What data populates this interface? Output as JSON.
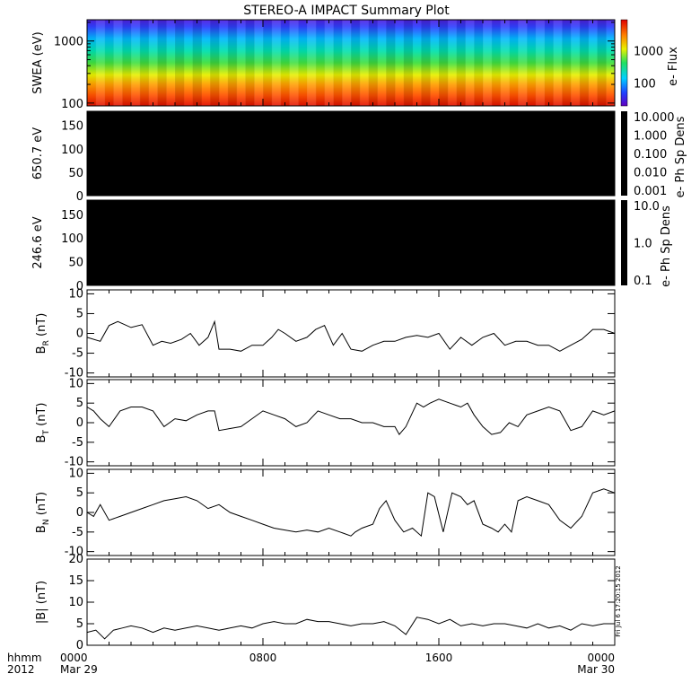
{
  "page": {
    "title": "STEREO-A IMPACT Summary Plot",
    "side_stamp": "Fri Jul  6 17:20:15 2012",
    "time_axis": {
      "corner_label_1": "hhmm",
      "corner_label_2": "2012",
      "ticks": [
        {
          "h": 0,
          "label": "0000",
          "sublabel": "Mar 29"
        },
        {
          "h": 8,
          "label": "0800",
          "sublabel": ""
        },
        {
          "h": 16,
          "label": "1600",
          "sublabel": ""
        },
        {
          "h": 24,
          "label": "0000",
          "sublabel": "Mar 30"
        }
      ]
    }
  },
  "chart_data": [
    {
      "type": "heatmap",
      "panel": "swea",
      "ylabel": "SWEA (eV)",
      "yscale": "log",
      "ylim": [
        90,
        2200
      ],
      "yticks": [
        100,
        1000
      ],
      "ytick_labels": [
        "100",
        "1000"
      ],
      "xlim": [
        0,
        24
      ],
      "colorbar": {
        "label": "e- Flux",
        "scale": "log",
        "range": [
          20,
          9000
        ],
        "ticks": [
          100,
          1000
        ],
        "tick_labels": [
          "100",
          "1000"
        ],
        "colors": [
          "#2030ff",
          "#00d0ff",
          "#10e060",
          "#f0f000",
          "#ff9000",
          "#ff3000",
          "#d00000"
        ]
      },
      "description_values": {
        "energy_bands_eV": [
          100,
          150,
          250,
          500,
          900,
          1300,
          1700,
          2000
        ],
        "flux_by_band": [
          7000,
          3500,
          1200,
          300,
          80,
          35,
          25,
          20
        ]
      }
    },
    {
      "type": "heatmap",
      "panel": "pad-650",
      "ylabel": "650.7 eV",
      "ylim": [
        0,
        180
      ],
      "yticks": [
        0,
        50,
        100,
        150
      ],
      "ytick_labels": [
        "0",
        "50",
        "100",
        "150"
      ],
      "xlim": [
        0,
        24
      ],
      "fill_color": "#000000",
      "colorbar": {
        "label": "e- Ph Sp Dens",
        "scale": "log",
        "tick_labels": [
          "10.000",
          "1.000",
          "0.100",
          "0.010",
          "0.001"
        ],
        "fill_color": "#000000"
      }
    },
    {
      "type": "heatmap",
      "panel": "pad-246",
      "ylabel": "246.6 eV",
      "ylim": [
        0,
        180
      ],
      "yticks": [
        0,
        50,
        100,
        150
      ],
      "ytick_labels": [
        "0",
        "50",
        "100",
        "150"
      ],
      "xlim": [
        0,
        24
      ],
      "fill_color": "#000000",
      "colorbar": {
        "label": "e- Ph Sp Dens",
        "scale": "log",
        "tick_labels": [
          "10.0",
          "1.0",
          "0.1"
        ],
        "fill_color": "#000000"
      }
    },
    {
      "type": "line",
      "panel": "br",
      "ylabel": "BR (nT)",
      "ylabel_main": "B",
      "ylabel_sub": "R",
      "ylabel_unit": " (nT)",
      "ylim": [
        -11,
        11
      ],
      "yticks": [
        -10,
        -5,
        0,
        5,
        10
      ],
      "ytick_labels": [
        "-10",
        "-5",
        "0",
        "5",
        "10"
      ],
      "xlim": [
        0,
        24
      ],
      "x": [
        0,
        0.6,
        1,
        1.4,
        2,
        2.5,
        3,
        3.4,
        3.8,
        4.3,
        4.7,
        5.1,
        5.5,
        5.8,
        6,
        6.5,
        7,
        7.5,
        8,
        8.4,
        8.7,
        9,
        9.5,
        10,
        10.4,
        10.8,
        11.2,
        11.6,
        12,
        12.5,
        13,
        13.5,
        14,
        14.5,
        15,
        15.5,
        16,
        16.5,
        17,
        17.5,
        18,
        18.5,
        19,
        19.5,
        20,
        20.5,
        21,
        21.5,
        22,
        22.5,
        23,
        23.5,
        24
      ],
      "y": [
        -1,
        -2,
        2,
        3,
        1.5,
        2.2,
        -3,
        -2,
        -2.5,
        -1.5,
        0,
        -3,
        -1,
        3,
        -4,
        -4,
        -4.5,
        -3,
        -3,
        -1,
        1,
        0,
        -2,
        -1,
        1,
        2,
        -3,
        0,
        -4,
        -4.5,
        -3,
        -2,
        -2,
        -1,
        -0.5,
        -1,
        0,
        -4,
        -1,
        -3,
        -1,
        0,
        -3,
        -2,
        -2,
        -3,
        -3,
        -4.5,
        -3,
        -1.5,
        1,
        1,
        0
      ]
    },
    {
      "type": "line",
      "panel": "bt",
      "ylabel": "BT (nT)",
      "ylabel_main": "B",
      "ylabel_sub": "T",
      "ylabel_unit": " (nT)",
      "ylim": [
        -11,
        11
      ],
      "yticks": [
        -10,
        -5,
        0,
        5,
        10
      ],
      "ytick_labels": [
        "-10",
        "-5",
        "0",
        "5",
        "10"
      ],
      "xlim": [
        0,
        24
      ],
      "x": [
        0,
        0.3,
        0.6,
        1,
        1.5,
        2,
        2.5,
        3,
        3.5,
        4,
        4.5,
        5,
        5.5,
        5.8,
        6,
        6.5,
        7,
        7.5,
        8,
        8.5,
        9,
        9.5,
        10,
        10.5,
        11,
        11.5,
        12,
        12.5,
        13,
        13.5,
        14,
        14.2,
        14.5,
        15,
        15.3,
        15.6,
        16,
        16.5,
        17,
        17.3,
        17.6,
        18,
        18.4,
        18.8,
        19.2,
        19.6,
        20,
        20.5,
        21,
        21.5,
        22,
        22.5,
        23,
        23.5,
        24
      ],
      "y": [
        4,
        3,
        1,
        -1,
        3,
        4,
        4,
        3,
        -1,
        1,
        0.5,
        2,
        3,
        3,
        -2,
        -1.5,
        -1,
        1,
        3,
        2,
        1,
        -1,
        0,
        3,
        2,
        1,
        1,
        0,
        0,
        -1,
        -1,
        -3,
        -1,
        5,
        4,
        5,
        6,
        5,
        4,
        5,
        2,
        -1,
        -3,
        -2.5,
        0,
        -1,
        2,
        3,
        4,
        3,
        -2,
        -1,
        3,
        2,
        3
      ]
    },
    {
      "type": "line",
      "panel": "bn",
      "ylabel": "BN (nT)",
      "ylabel_main": "B",
      "ylabel_sub": "N",
      "ylabel_unit": " (nT)",
      "ylim": [
        -11,
        11
      ],
      "yticks": [
        -10,
        -5,
        0,
        5,
        10
      ],
      "ytick_labels": [
        "-10",
        "-5",
        "0",
        "5",
        "10"
      ],
      "xlim": [
        0,
        24
      ],
      "x": [
        0,
        0.3,
        0.6,
        1,
        1.5,
        2,
        2.5,
        3,
        3.5,
        4,
        4.5,
        5,
        5.5,
        6,
        6.5,
        7,
        7.5,
        8,
        8.5,
        9,
        9.5,
        10,
        10.5,
        11,
        11.5,
        12,
        12.2,
        12.5,
        13,
        13.3,
        13.6,
        14,
        14.4,
        14.8,
        15.2,
        15.5,
        15.8,
        16.2,
        16.6,
        17,
        17.3,
        17.6,
        18,
        18.4,
        18.7,
        19,
        19.3,
        19.6,
        20,
        20.5,
        21,
        21.5,
        22,
        22.5,
        23,
        23.5,
        24
      ],
      "y": [
        0,
        -1,
        2,
        -2,
        -1,
        0,
        1,
        2,
        3,
        3.5,
        4,
        3,
        1,
        2,
        0,
        -1,
        -2,
        -3,
        -4,
        -4.5,
        -5,
        -4.5,
        -5,
        -4,
        -5,
        -6,
        -5,
        -4,
        -3,
        1,
        3,
        -2,
        -5,
        -4,
        -6,
        5,
        4,
        -5,
        5,
        4,
        2,
        3,
        -3,
        -4,
        -5,
        -3,
        -5,
        3,
        4,
        3,
        2,
        -2,
        -4,
        -1,
        5,
        6,
        5
      ]
    },
    {
      "type": "line",
      "panel": "bmag",
      "ylabel": "|B| (nT)",
      "ylabel_main": "|B|",
      "ylabel_sub": "",
      "ylabel_unit": " (nT)",
      "ylim": [
        0,
        20
      ],
      "yticks": [
        0,
        5,
        10,
        15,
        20
      ],
      "ytick_labels": [
        "0",
        "5",
        "10",
        "15",
        "20"
      ],
      "xlim": [
        0,
        24
      ],
      "x": [
        0,
        0.4,
        0.8,
        1.2,
        1.6,
        2,
        2.5,
        3,
        3.5,
        4,
        4.5,
        5,
        5.5,
        6,
        6.5,
        7,
        7.5,
        8,
        8.5,
        9,
        9.5,
        10,
        10.5,
        11,
        11.5,
        12,
        12.5,
        13,
        13.5,
        14,
        14.5,
        15,
        15.5,
        16,
        16.5,
        17,
        17.5,
        18,
        18.5,
        19,
        19.5,
        20,
        20.5,
        21,
        21.5,
        22,
        22.5,
        23,
        23.5,
        24
      ],
      "y": [
        3,
        3.5,
        1.5,
        3.5,
        4,
        4.5,
        4,
        3,
        4,
        3.5,
        4,
        4.5,
        4,
        3.5,
        4,
        4.5,
        4,
        5,
        5.5,
        5,
        5,
        6,
        5.5,
        5.5,
        5,
        4.5,
        5,
        5,
        5.5,
        4.5,
        2.5,
        6.5,
        6,
        5,
        6,
        4.5,
        5,
        4.5,
        5,
        5,
        4.5,
        4,
        5,
        4,
        4.5,
        3.5,
        5,
        4.5,
        5,
        5
      ]
    }
  ]
}
